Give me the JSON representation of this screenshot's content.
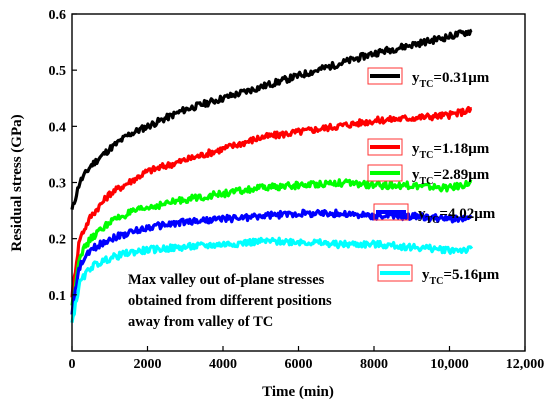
{
  "chart_data": {
    "type": "line",
    "title": "",
    "xlabel": "Time (min)",
    "ylabel": "Residual stress (GPa)",
    "xlim": [
      0,
      12000
    ],
    "ylim": [
      0.0,
      0.6
    ],
    "x_ticks": [
      "0",
      "2000",
      "4000",
      "6000",
      "8000",
      "10,000",
      "12,000"
    ],
    "x_tick_values": [
      0,
      2000,
      4000,
      6000,
      8000,
      10000,
      12000
    ],
    "y_ticks": [
      "0.1",
      "0.2",
      "0.3",
      "0.4",
      "0.5",
      "0.6"
    ],
    "y_tick_values": [
      0.1,
      0.2,
      0.3,
      0.4,
      0.5,
      0.6
    ],
    "grid": false,
    "legend_position": "right",
    "annotation_lines": [
      "Max valley out of-plane stresses",
      "obtained from different positions",
      "away from valley of TC"
    ],
    "series": [
      {
        "name": "yTC=0.31μm",
        "label_main": "y",
        "label_sub": "TC",
        "label_value": "=0.31μm",
        "color": "#000000",
        "x": [
          0,
          200,
          500,
          1000,
          1500,
          2000,
          3000,
          4000,
          5000,
          6000,
          7000,
          8000,
          9000,
          10000,
          10600
        ],
        "y": [
          0.25,
          0.3,
          0.33,
          0.36,
          0.385,
          0.4,
          0.43,
          0.45,
          0.47,
          0.49,
          0.51,
          0.53,
          0.545,
          0.56,
          0.57
        ]
      },
      {
        "name": "yTC=1.18μm",
        "label_main": "y",
        "label_sub": "TC",
        "label_value": "=1.18μm",
        "color": "#ff0000",
        "x": [
          0,
          200,
          500,
          1000,
          1500,
          2000,
          3000,
          4000,
          5000,
          6000,
          7000,
          8000,
          9000,
          10000,
          10600
        ],
        "y": [
          0.1,
          0.2,
          0.24,
          0.28,
          0.3,
          0.32,
          0.34,
          0.36,
          0.38,
          0.39,
          0.4,
          0.41,
          0.415,
          0.42,
          0.43
        ]
      },
      {
        "name": "yTC=2.89μm",
        "label_main": "y",
        "label_sub": "TC",
        "label_value": "=2.89μm",
        "color": "#00ff00",
        "x": [
          0,
          200,
          500,
          1000,
          1500,
          2000,
          3000,
          4000,
          5000,
          6000,
          7000,
          8000,
          9000,
          10000,
          10600
        ],
        "y": [
          0.08,
          0.17,
          0.2,
          0.23,
          0.245,
          0.255,
          0.27,
          0.28,
          0.29,
          0.295,
          0.3,
          0.295,
          0.295,
          0.29,
          0.3
        ]
      },
      {
        "name": "yTC=4.02μm",
        "label_main": "y",
        "label_sub": "TC",
        "label_value": "=4.02μm",
        "color": "#0000ff",
        "x": [
          0,
          200,
          500,
          1000,
          1500,
          2000,
          3000,
          4000,
          5000,
          6000,
          7000,
          8000,
          9000,
          10000,
          10600
        ],
        "y": [
          0.07,
          0.15,
          0.18,
          0.2,
          0.21,
          0.22,
          0.23,
          0.235,
          0.24,
          0.245,
          0.245,
          0.24,
          0.24,
          0.235,
          0.235
        ]
      },
      {
        "name": "yTC=5.16μm",
        "label_main": "y",
        "label_sub": "TC",
        "label_value": "=5.16μm",
        "color": "#00ffff",
        "x": [
          0,
          200,
          500,
          1000,
          1500,
          2000,
          3000,
          4000,
          5000,
          6000,
          7000,
          8000,
          9000,
          10000,
          10600
        ],
        "y": [
          0.05,
          0.12,
          0.15,
          0.165,
          0.175,
          0.18,
          0.185,
          0.19,
          0.195,
          0.195,
          0.19,
          0.19,
          0.185,
          0.18,
          0.18
        ]
      }
    ]
  }
}
